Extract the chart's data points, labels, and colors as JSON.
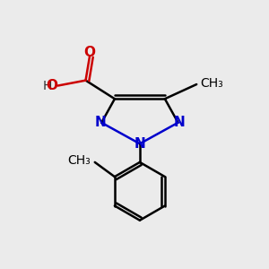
{
  "background_color": "#ebebeb",
  "atom_colors": {
    "C": "#000000",
    "N": "#0000cc",
    "O": "#cc0000",
    "H": "#404040"
  },
  "figsize": [
    3.0,
    3.0
  ],
  "dpi": 100
}
